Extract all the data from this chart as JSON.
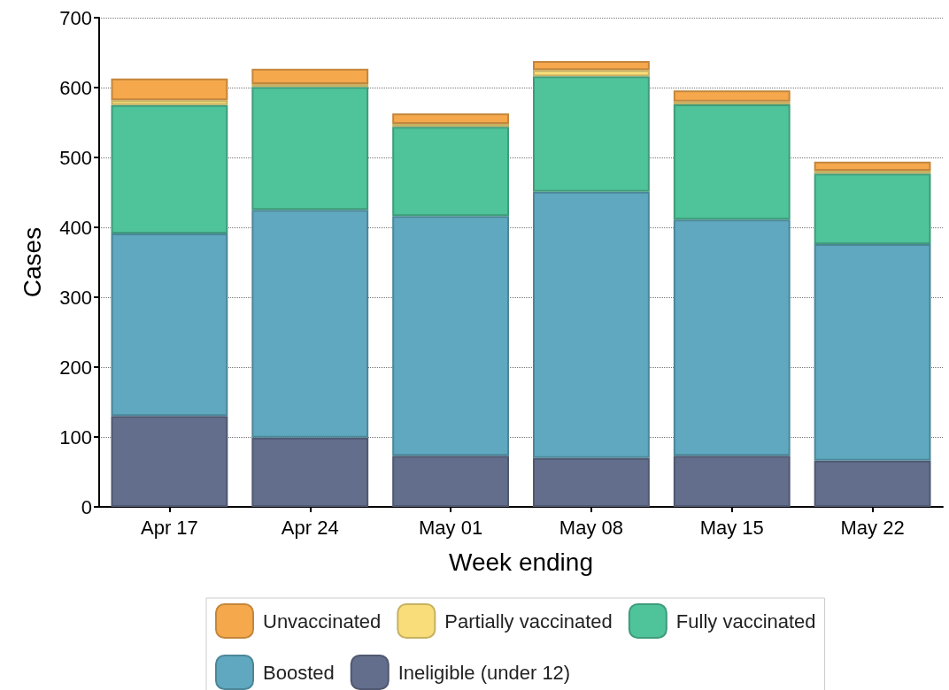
{
  "chart_data": {
    "type": "bar",
    "stacked": true,
    "xlabel": "Week ending",
    "ylabel": "Cases",
    "categories": [
      "Apr 17",
      "Apr 24",
      "May 01",
      "May 08",
      "May 15",
      "May 22"
    ],
    "series": [
      {
        "name": "Ineligible (under 12)",
        "color": "#636e8c",
        "values": [
          130,
          99,
          73,
          70,
          73,
          66
        ]
      },
      {
        "name": "Boosted",
        "color": "#5fa8bf",
        "values": [
          261,
          326,
          343,
          381,
          338,
          310
        ]
      },
      {
        "name": "Fully vaccinated",
        "color": "#4fc39a",
        "values": [
          184,
          176,
          128,
          165,
          165,
          101
        ]
      },
      {
        "name": "Partially vaccinated",
        "color": "#f8dd7a",
        "values": [
          7,
          4,
          4,
          9,
          4,
          4
        ]
      },
      {
        "name": "Unvaccinated",
        "color": "#f5a84c",
        "values": [
          31,
          22,
          15,
          13,
          16,
          13
        ]
      }
    ],
    "ylim": [
      0,
      700
    ],
    "yticks": [
      0,
      100,
      200,
      300,
      400,
      500,
      600,
      700
    ],
    "grid": "y",
    "legend": "bottom"
  }
}
